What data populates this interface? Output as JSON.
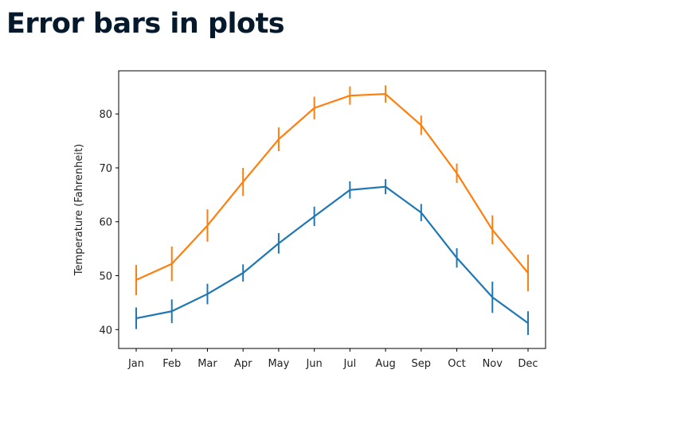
{
  "page": {
    "title": "Error bars in plots"
  },
  "chart_data": {
    "type": "line",
    "title": "",
    "xlabel": "",
    "ylabel": "Temperature (Fahrenheit)",
    "categories": [
      "Jan",
      "Feb",
      "Mar",
      "Apr",
      "May",
      "Jun",
      "Jul",
      "Aug",
      "Sep",
      "Oct",
      "Nov",
      "Dec"
    ],
    "ylim": [
      36.5,
      88
    ],
    "yticks": [
      40,
      50,
      60,
      70,
      80
    ],
    "grid": false,
    "legend": "none",
    "series": [
      {
        "color": "#1f77b4",
        "values": [
          42.1,
          43.4,
          46.6,
          50.5,
          56.0,
          61.0,
          65.9,
          66.5,
          61.7,
          53.3,
          46.0,
          41.2
        ],
        "errors": [
          2.0,
          2.2,
          1.9,
          1.6,
          1.9,
          1.8,
          1.6,
          1.4,
          1.6,
          1.8,
          2.9,
          2.2
        ]
      },
      {
        "color": "#ff7f0e",
        "values": [
          49.2,
          52.2,
          59.3,
          67.4,
          75.3,
          81.1,
          83.4,
          83.7,
          77.9,
          69.0,
          58.5,
          50.5
        ],
        "errors": [
          2.8,
          3.2,
          3.0,
          2.6,
          2.2,
          2.1,
          1.7,
          1.6,
          1.8,
          1.8,
          2.7,
          3.4
        ]
      }
    ]
  }
}
